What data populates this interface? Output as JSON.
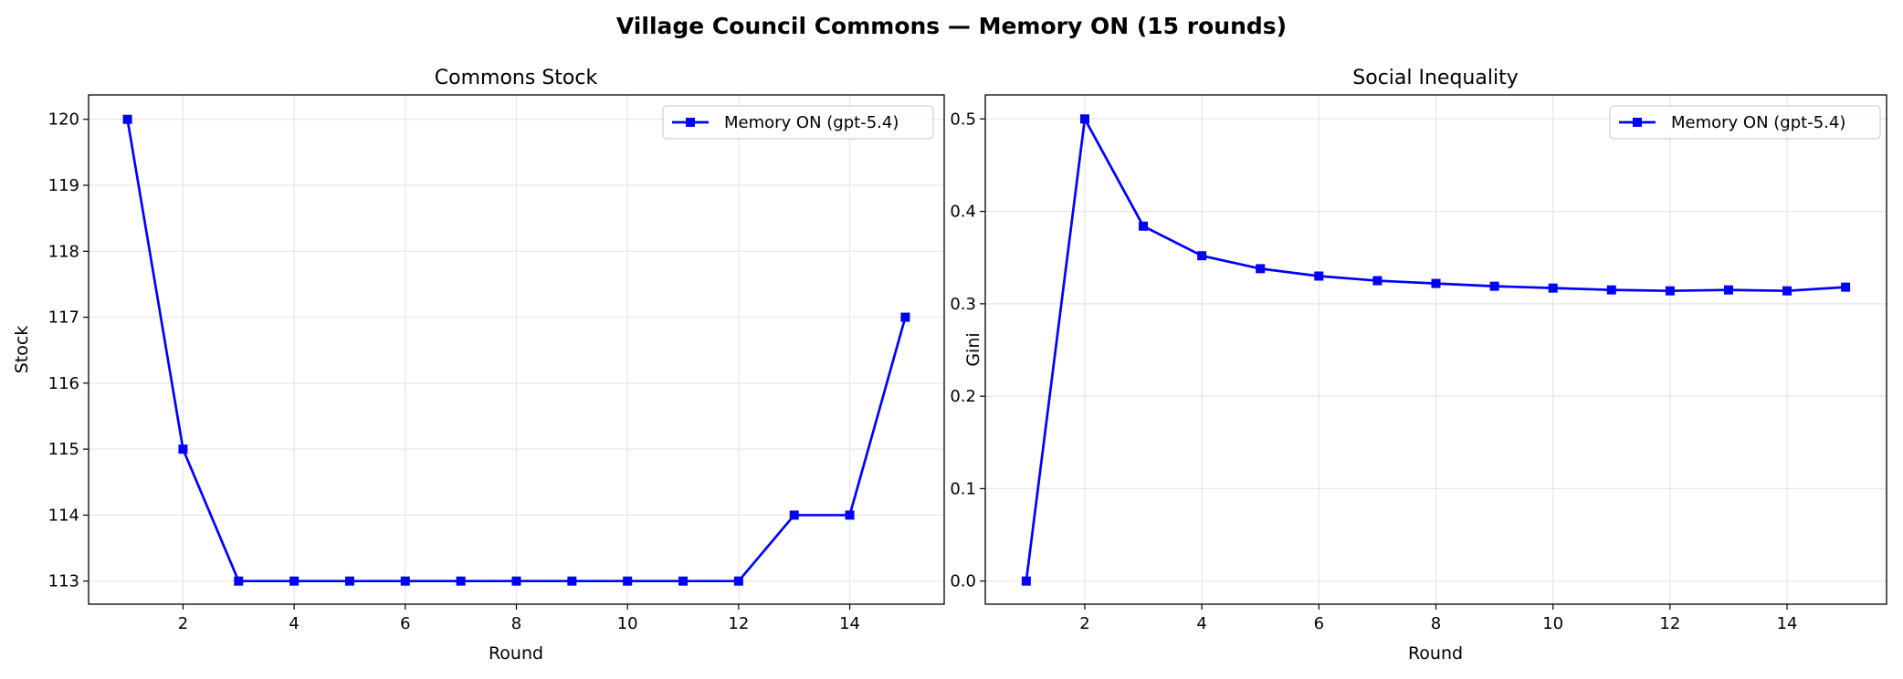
{
  "suptitle": "Village Council Commons — Memory ON (15 rounds)",
  "chart_data": [
    {
      "type": "line",
      "title": "Commons Stock",
      "xlabel": "Round",
      "ylabel": "Stock",
      "x": [
        1,
        2,
        3,
        4,
        5,
        6,
        7,
        8,
        9,
        10,
        11,
        12,
        13,
        14,
        15
      ],
      "series": [
        {
          "name": "Memory ON (gpt-5.4)",
          "color": "#0000ff",
          "marker": "square",
          "values": [
            120,
            115,
            113,
            113,
            113,
            113,
            113,
            113,
            113,
            113,
            113,
            113,
            114,
            114,
            117
          ]
        }
      ],
      "xlim": [
        0.3,
        15.7
      ],
      "ylim": [
        112.65,
        120.37
      ],
      "xticks": [
        2,
        4,
        6,
        8,
        10,
        12,
        14
      ],
      "yticks": [
        113,
        114,
        115,
        116,
        117,
        118,
        119,
        120
      ],
      "grid": true,
      "legend": "top-right"
    },
    {
      "type": "line",
      "title": "Social Inequality",
      "xlabel": "Round",
      "ylabel": "Gini",
      "x": [
        1,
        2,
        3,
        4,
        5,
        6,
        7,
        8,
        9,
        10,
        11,
        12,
        13,
        14,
        15
      ],
      "series": [
        {
          "name": "Memory ON (gpt-5.4)",
          "color": "#0000ff",
          "marker": "square",
          "values": [
            0.0,
            0.5,
            0.384,
            0.352,
            0.338,
            0.33,
            0.325,
            0.322,
            0.319,
            0.317,
            0.315,
            0.314,
            0.315,
            0.314,
            0.318
          ]
        }
      ],
      "xlim": [
        0.3,
        15.7
      ],
      "ylim": [
        -0.025,
        0.526
      ],
      "xticks": [
        2,
        4,
        6,
        8,
        10,
        12,
        14
      ],
      "yticks": [
        "0.0",
        "0.1",
        "0.2",
        "0.3",
        "0.4",
        "0.5"
      ],
      "grid": true,
      "legend": "top-right"
    }
  ]
}
